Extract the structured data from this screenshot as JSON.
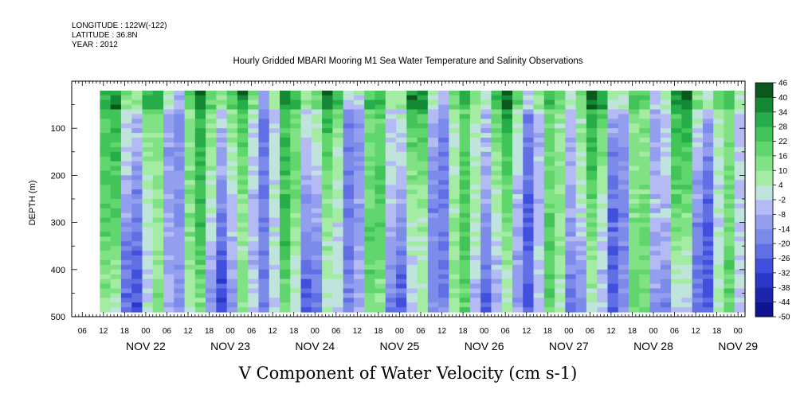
{
  "header": {
    "longitude": "LONGITUDE : 122W(-122)",
    "latitude": "LATITUDE : 36.8N",
    "year": "YEAR : 2012"
  },
  "chart_data": {
    "type": "heatmap",
    "title": "Hourly Gridded MBARI Mooring M1 Sea Water Temperature and Salinity Observations",
    "xlabel": "V Component of Water Velocity (cm s-1)",
    "ylabel": "DEPTH (m)",
    "x_range": [
      "2012-11-21T03:00",
      "2012-11-29T02:00"
    ],
    "data_time_range": [
      "2012-11-21T11:00",
      "2012-11-29T01:00"
    ],
    "y_range": [
      500,
      0
    ],
    "y_inverted": true,
    "depth_range_data": [
      20,
      485
    ],
    "x_hour_ticks": [
      "06",
      "12",
      "18",
      "00",
      "06",
      "12",
      "18",
      "00",
      "06",
      "12",
      "18",
      "00",
      "06",
      "12",
      "18",
      "00",
      "06",
      "12",
      "18",
      "00",
      "06",
      "12",
      "18",
      "00",
      "06",
      "12",
      "18",
      "00",
      "06",
      "12",
      "18",
      "00"
    ],
    "x_day_labels": [
      "NOV 22",
      "NOV 23",
      "NOV 24",
      "NOV 25",
      "NOV 26",
      "NOV 27",
      "NOV 28",
      "NOV 29"
    ],
    "y_ticks": [
      100,
      200,
      300,
      400,
      500
    ],
    "colorbar_levels": [
      -50,
      -44,
      -38,
      -32,
      -26,
      -20,
      -14,
      -8,
      -2,
      4,
      10,
      16,
      22,
      28,
      34,
      40,
      46
    ],
    "colorbar_labels": [
      "46",
      "40",
      "34",
      "28",
      "22",
      "16",
      "10",
      "4",
      "-2",
      "-8",
      "-14",
      "-20",
      "-26",
      "-32",
      "-38",
      "-44",
      "-50"
    ],
    "colors": {
      "neg_extreme": "#0a0a80",
      "neg_strong": "#3040d8",
      "neg_mid": "#7080e8",
      "neg_weak": "#a0a8f0",
      "neutral_low": "#c8ccf8",
      "neutral_high": "#b8f0b8",
      "pos_weak": "#90e890",
      "pos_mid": "#50d060",
      "pos_strong": "#18a040",
      "pos_extreme": "#064010"
    }
  }
}
